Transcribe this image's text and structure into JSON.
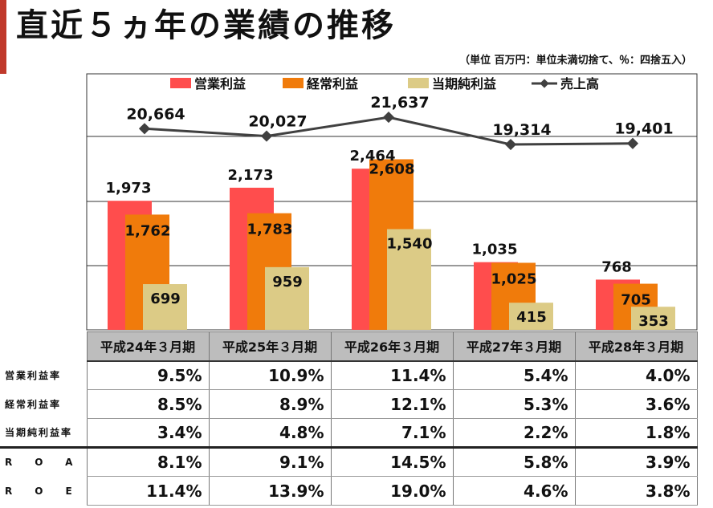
{
  "title": "直近５ヵ年の業績の推移",
  "unit_note": "（単位 百万円：単位未満切捨て、％：四捨五入）",
  "colors": {
    "operating": "#ff4d4d",
    "ordinary": "#f07b0b",
    "net": "#dccb86",
    "sales": "#404040",
    "accent": "#c0392b"
  },
  "chart_data": {
    "type": "bar",
    "categories": [
      "平成24年３月期",
      "平成25年３月期",
      "平成26年３月期",
      "平成27年３月期",
      "平成28年３月期"
    ],
    "series": [
      {
        "name": "営業利益",
        "values": [
          1973,
          2173,
          2464,
          1035,
          768
        ],
        "labels": [
          "1,973",
          "2,173",
          "2,464",
          "1,035",
          "768"
        ]
      },
      {
        "name": "経常利益",
        "values": [
          1762,
          1783,
          2608,
          1025,
          705
        ],
        "labels": [
          "1,762",
          "1,783",
          "2,608",
          "1,025",
          "705"
        ]
      },
      {
        "name": "当期純利益",
        "values": [
          699,
          959,
          1540,
          415,
          353
        ],
        "labels": [
          "699",
          "959",
          "1,540",
          "415",
          "353"
        ]
      }
    ],
    "line_series": {
      "name": "売上高",
      "values": [
        20664,
        20027,
        21637,
        19314,
        19401
      ],
      "labels": [
        "20,664",
        "20,027",
        "21,637",
        "19,314",
        "19,401"
      ]
    },
    "grid": true,
    "legend": "top"
  },
  "table": {
    "headers": [
      "平成24年３月期",
      "平成25年３月期",
      "平成26年３月期",
      "平成27年３月期",
      "平成28年３月期"
    ],
    "rows": [
      {
        "label": "営業利益率",
        "values": [
          "9.5%",
          "10.9%",
          "11.4%",
          "5.4%",
          "4.0%"
        ]
      },
      {
        "label": "経常利益率",
        "values": [
          "8.5%",
          "8.9%",
          "12.1%",
          "5.3%",
          "3.6%"
        ]
      },
      {
        "label": "当期純利益率",
        "values": [
          "3.4%",
          "4.8%",
          "7.1%",
          "2.2%",
          "1.8%"
        ]
      },
      {
        "label": "ROA",
        "values": [
          "8.1%",
          "9.1%",
          "14.5%",
          "5.8%",
          "3.9%"
        ]
      },
      {
        "label": "ROE",
        "values": [
          "11.4%",
          "13.9%",
          "19.0%",
          "4.6%",
          "3.8%"
        ]
      }
    ]
  }
}
